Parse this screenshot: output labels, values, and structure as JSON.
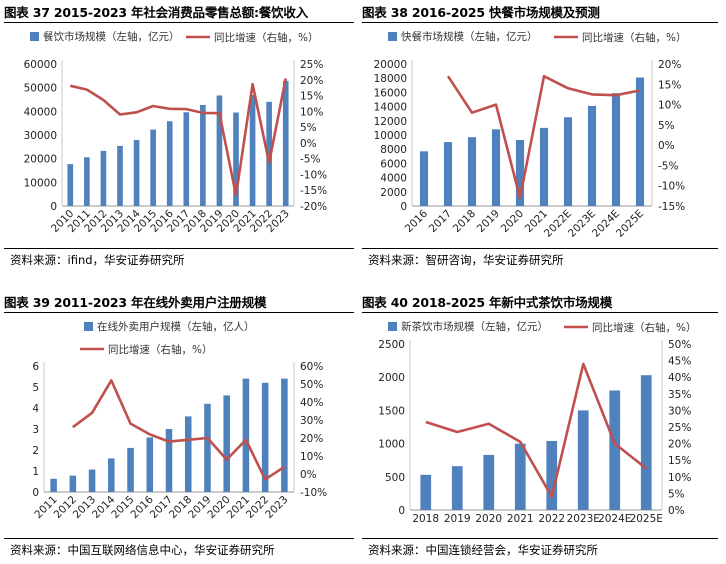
{
  "panels": [
    {
      "title": "图表 37 2015-2023 年社会消费品零售总额:餐饮收入",
      "source": "资料来源：ifind，华安证券研究所",
      "chart_data": {
        "type": "bar",
        "categories": [
          "2010",
          "2011",
          "2012",
          "2013",
          "2014",
          "2015",
          "2016",
          "2017",
          "2018",
          "2019",
          "2020",
          "2021",
          "2022",
          "2023"
        ],
        "series": [
          {
            "name": "餐饮市场规模（左轴，亿元）",
            "type": "bar",
            "axis": "left",
            "color": "#4f81bd",
            "values": [
              17700,
              20600,
              23300,
              25400,
              27900,
              32300,
              35800,
              39600,
              42700,
              46700,
              39500,
              46900,
              44000,
              52900
            ]
          },
          {
            "name": "同比增速（右轴，%）",
            "type": "line",
            "axis": "right",
            "color": "#c0504d",
            "values": [
              18.1,
              16.9,
              13.6,
              9.0,
              9.7,
              11.7,
              10.8,
              10.7,
              9.5,
              9.4,
              -16.6,
              18.6,
              -6.3,
              20.4
            ]
          }
        ],
        "left_axis": {
          "min": 0,
          "max": 60000,
          "step": 10000,
          "ticks": [
            "0",
            "10000",
            "20000",
            "30000",
            "40000",
            "50000",
            "60000"
          ]
        },
        "right_axis": {
          "min": -20,
          "max": 25,
          "step": 5,
          "ticks": [
            "-20%",
            "-15%",
            "-10%",
            "-5%",
            "0%",
            "5%",
            "10%",
            "15%",
            "20%",
            "25%"
          ]
        },
        "legend": "top"
      }
    },
    {
      "title": "图表 38 2016-2025 快餐市场规模及预测",
      "source": "资料来源：智研咨询，华安证券研究所",
      "chart_data": {
        "type": "bar",
        "categories": [
          "2016",
          "2017",
          "2018",
          "2019",
          "2020",
          "2021",
          "2022E",
          "2023E",
          "2024E",
          "2025E"
        ],
        "series": [
          {
            "name": "快餐市场规模（左轴，亿元）",
            "type": "bar",
            "axis": "left",
            "color": "#4f81bd",
            "values": [
              7700,
              9000,
              9700,
              10800,
              9300,
              11000,
              12500,
              14100,
              15900,
              18100
            ]
          },
          {
            "name": "同比增速（右轴，%）",
            "type": "line",
            "axis": "right",
            "color": "#c0504d",
            "values": [
              null,
              17,
              8,
              10,
              -13,
              17,
              14,
              12.5,
              12.3,
              13.5
            ]
          }
        ],
        "left_axis": {
          "min": 0,
          "max": 20000,
          "step": 2000,
          "ticks": [
            "0",
            "2000",
            "4000",
            "6000",
            "8000",
            "10000",
            "12000",
            "14000",
            "16000",
            "18000",
            "20000"
          ]
        },
        "right_axis": {
          "min": -15,
          "max": 20,
          "step": 5,
          "ticks": [
            "-15%",
            "-10%",
            "-5%",
            "0%",
            "5%",
            "10%",
            "15%",
            "20%"
          ]
        },
        "legend": "top"
      }
    },
    {
      "title": "图表 39 2011-2023 年在线外卖用户注册规模",
      "source": "资料来源：中国互联网络信息中心，华安证券研究所",
      "chart_data": {
        "type": "bar",
        "categories": [
          "2011",
          "2012",
          "2013",
          "2014",
          "2015",
          "2016",
          "2017",
          "2018",
          "2019",
          "2020",
          "2021",
          "2022",
          "2023"
        ],
        "series": [
          {
            "name": "在线外卖用户规模（左轴，亿人）",
            "type": "bar",
            "axis": "left",
            "color": "#4f81bd",
            "values": [
              0.63,
              0.78,
              1.07,
              1.6,
              2.1,
              2.6,
              3.0,
              3.6,
              4.2,
              4.6,
              5.4,
              5.2,
              5.4
            ]
          },
          {
            "name": "同比增速（右轴，%）",
            "type": "line",
            "axis": "right",
            "color": "#c0504d",
            "values": [
              null,
              26,
              34,
              52,
              28,
              22,
              18,
              19,
              20,
              8,
              19,
              -3,
              4
            ]
          }
        ],
        "left_axis": {
          "min": 0,
          "max": 6,
          "step": 1,
          "ticks": [
            "0",
            "1",
            "2",
            "3",
            "4",
            "5",
            "6"
          ]
        },
        "right_axis": {
          "min": -10,
          "max": 60,
          "step": 10,
          "ticks": [
            "-10%",
            "0%",
            "10%",
            "20%",
            "30%",
            "40%",
            "50%",
            "60%"
          ]
        },
        "legend": "top"
      }
    },
    {
      "title": "图表 40 2018-2025 年新中式茶饮市场规模",
      "source": "资料来源：中国连锁经营会，华安证券研究所",
      "chart_data": {
        "type": "bar",
        "categories": [
          "2018",
          "2019",
          "2020",
          "2021",
          "2022",
          "2023E",
          "2024E",
          "2025E"
        ],
        "series": [
          {
            "name": "新茶饮市场规模（左轴，亿元）",
            "type": "bar",
            "axis": "left",
            "color": "#4f81bd",
            "values": [
              530,
              660,
              830,
              1000,
              1040,
              1500,
              1800,
              2030
            ]
          },
          {
            "name": "同比增速（右轴，%）",
            "type": "line",
            "axis": "right",
            "color": "#c0504d",
            "values": [
              26.5,
              23.5,
              26,
              20.5,
              4,
              44,
              20,
              12.5
            ]
          }
        ],
        "left_axis": {
          "min": 0,
          "max": 2500,
          "step": 500,
          "ticks": [
            "0",
            "500",
            "1000",
            "1500",
            "2000",
            "2500"
          ]
        },
        "right_axis": {
          "min": 0,
          "max": 50,
          "step": 5,
          "ticks": [
            "0%",
            "5%",
            "10%",
            "15%",
            "20%",
            "25%",
            "30%",
            "35%",
            "40%",
            "45%",
            "50%"
          ]
        },
        "legend": "top"
      }
    }
  ]
}
